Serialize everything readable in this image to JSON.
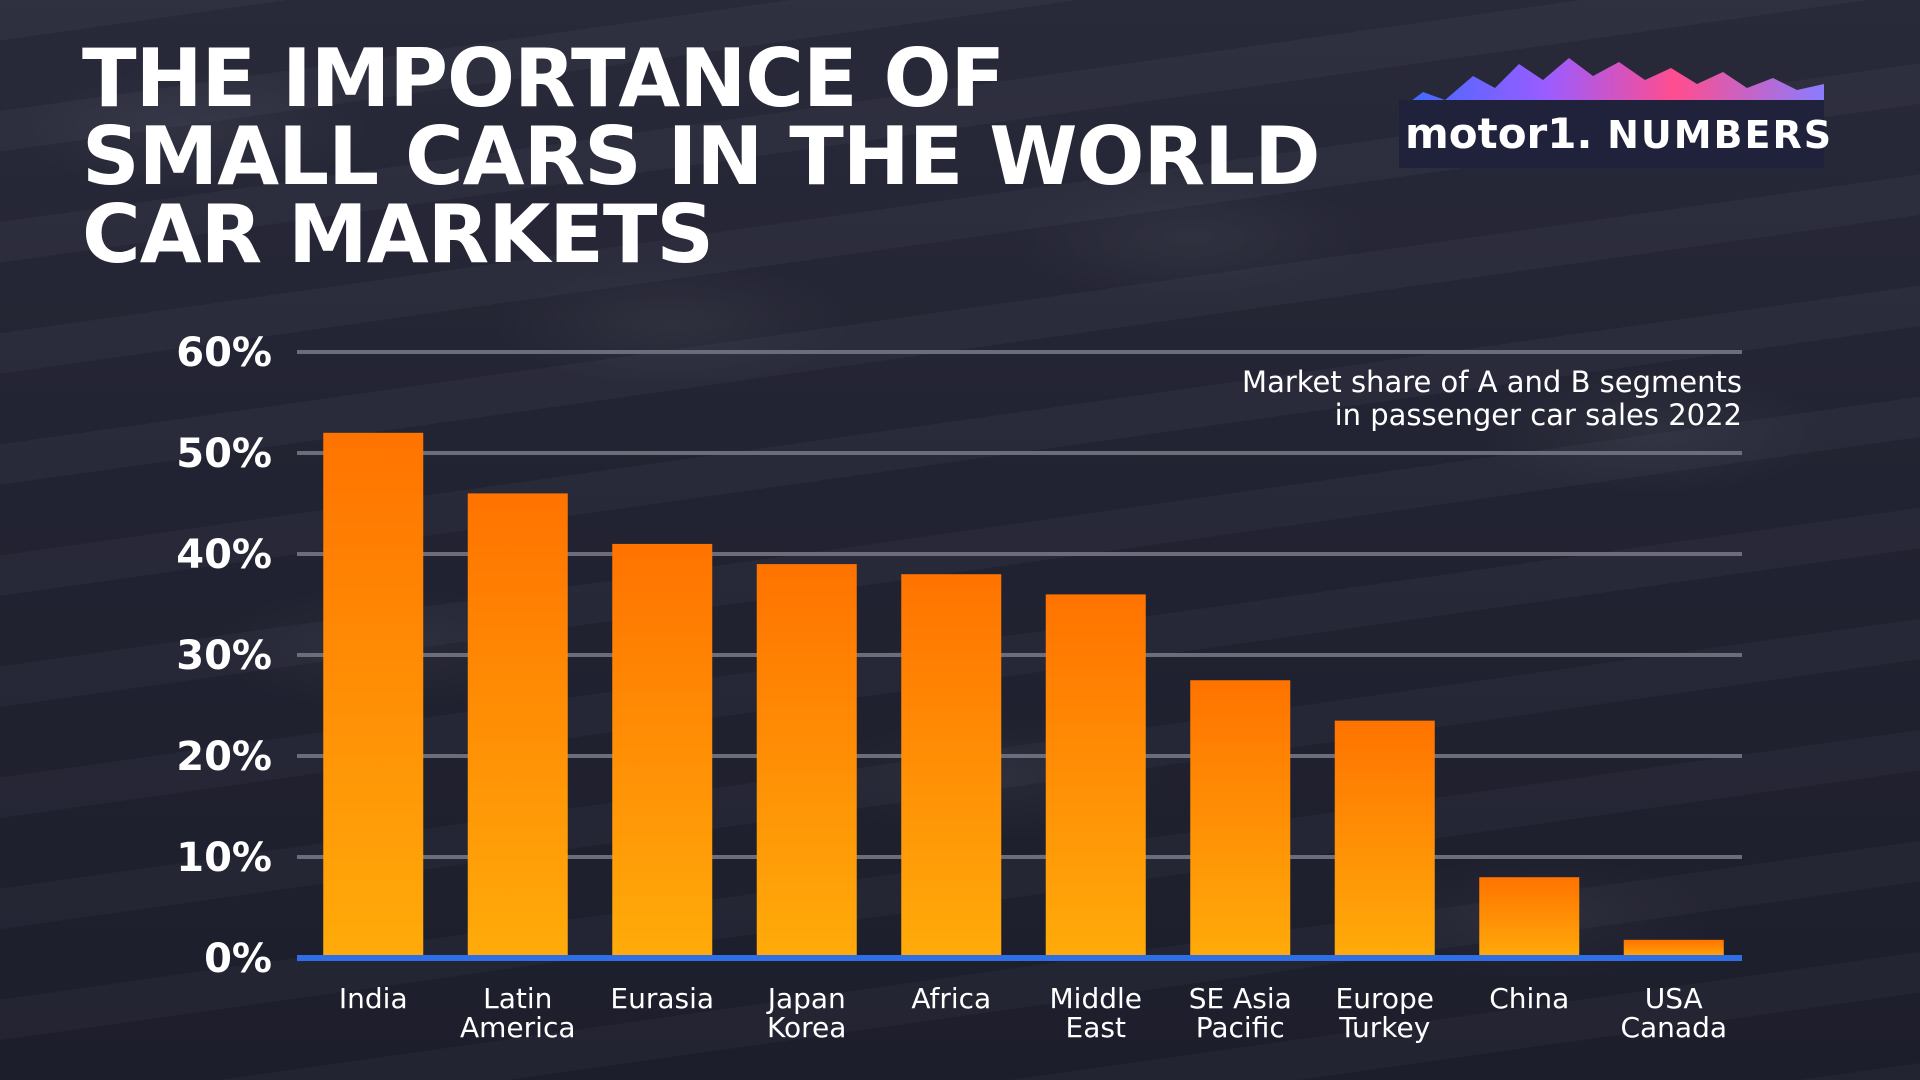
{
  "title": "THE IMPORTANCE OF\nSMALL CARS IN THE WORLD\nCAR MARKETS",
  "logo": {
    "brand": "motor1.",
    "product": "NUMBERS"
  },
  "colors": {
    "bar_top": "#ff7300",
    "bar_bottom": "#ffab0a",
    "baseline": "#2f6fe6",
    "gridline": "#6b6d7c",
    "background": "#232434"
  },
  "chart_data": {
    "type": "bar",
    "subtitle": "Market share of A and B segments\nin passenger car sales 2022",
    "categories": [
      "India",
      "Latin\nAmerica",
      "Eurasia",
      "Japan\nKorea",
      "Africa",
      "Middle\nEast",
      "SE Asia\nPacific",
      "Europe\nTurkey",
      "China",
      "USA\nCanada"
    ],
    "values": [
      52,
      46,
      41,
      39,
      38,
      36,
      27.5,
      23.5,
      8,
      1.8
    ],
    "ylim": [
      0,
      60
    ],
    "yticks": [
      0,
      10,
      20,
      30,
      40,
      50,
      60
    ],
    "ytick_format": "%",
    "grid": true,
    "legend": "none"
  }
}
